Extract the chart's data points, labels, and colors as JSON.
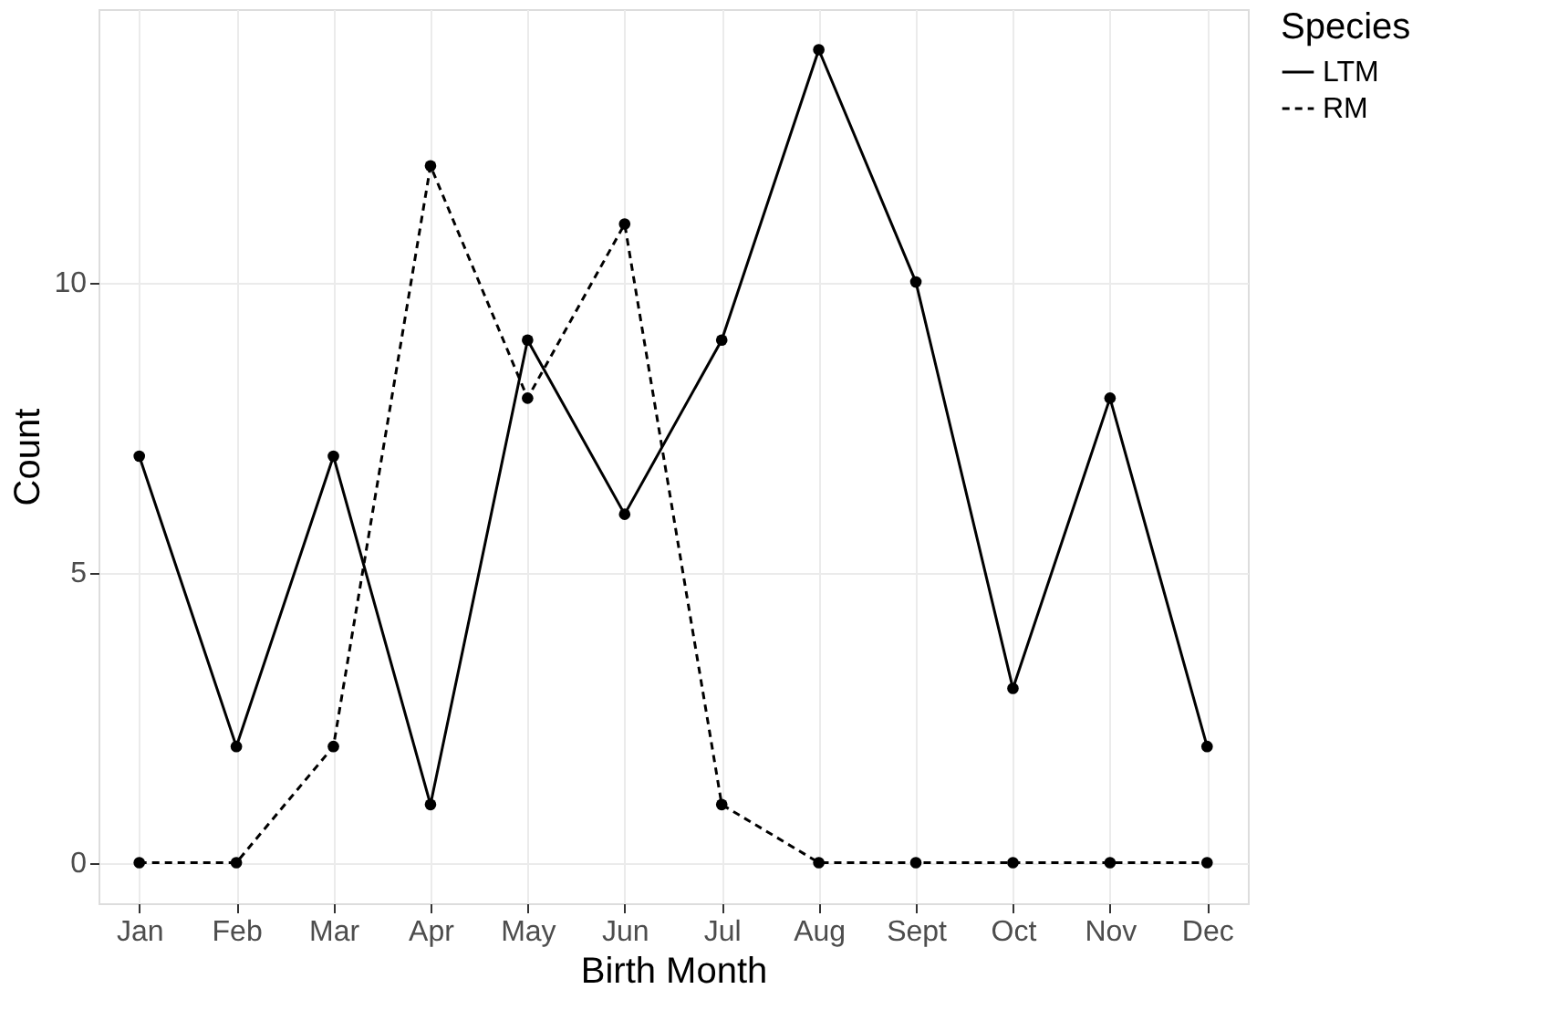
{
  "chart_data": {
    "type": "line",
    "xlabel": "Birth Month",
    "ylabel": "Count",
    "legend_title": "Species",
    "legend": "right",
    "grid": true,
    "marker": "circle",
    "categories": [
      "Jan",
      "Feb",
      "Mar",
      "Apr",
      "May",
      "Jun",
      "Jul",
      "Aug",
      "Sept",
      "Oct",
      "Nov",
      "Dec"
    ],
    "ylim": [
      -0.7,
      14.7
    ],
    "yticks": [
      0,
      5,
      10
    ],
    "series": [
      {
        "name": "LTM",
        "color": "#000000",
        "line_style": "solid",
        "values": [
          7,
          2,
          7,
          1,
          9,
          6,
          9,
          14,
          10,
          3,
          8,
          2
        ]
      },
      {
        "name": "RM",
        "color": "#000000",
        "line_style": "dashed",
        "values": [
          0,
          0,
          2,
          12,
          8,
          11,
          1,
          0,
          0,
          0,
          0,
          0
        ]
      }
    ]
  }
}
